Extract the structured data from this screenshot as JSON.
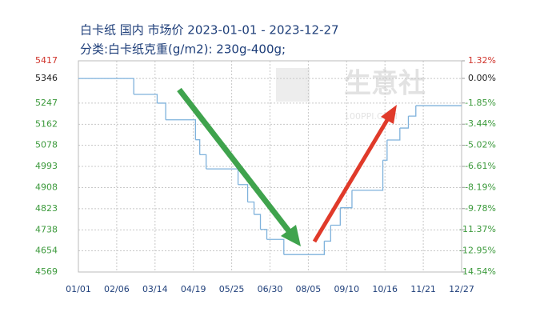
{
  "chart_data": {
    "type": "step",
    "title": "白卡纸 国内 市场价 2023-01-01 - 2023-12-27",
    "subtitle": "分类:白卡纸克重(g/m2): 230g-400g;",
    "watermark": "生意社",
    "watermark_url": "100PPI.COM",
    "x": [
      "01/01",
      "02/22",
      "03/16",
      "03/24",
      "04/21",
      "04/25",
      "05/01",
      "05/31",
      "06/09",
      "06/15",
      "06/21",
      "06/27",
      "07/13",
      "08/20",
      "08/26",
      "09/04",
      "09/15",
      "10/14",
      "10/18",
      "10/30",
      "11/07",
      "11/14",
      "12/27"
    ],
    "series": [
      {
        "name": "白卡纸",
        "color": "#7fb2dc",
        "values": [
          5346,
          5282,
          5247,
          5180,
          5100,
          5040,
          4983,
          4920,
          4850,
          4800,
          4740,
          4700,
          4639,
          4693,
          4757,
          4827,
          4897,
          5018,
          5099,
          5147,
          5195,
          5237,
          5237
        ]
      }
    ],
    "xlim": [
      "01/01",
      "12/27"
    ],
    "xticks": [
      "01/01",
      "02/06",
      "03/14",
      "04/19",
      "05/25",
      "06/30",
      "08/05",
      "09/10",
      "10/16",
      "11/21",
      "12/27"
    ],
    "ylim": [
      4569,
      5417
    ],
    "yticks": [
      5417,
      5346,
      5247,
      5162,
      5078,
      4993,
      4908,
      4823,
      4738,
      4654,
      4569
    ],
    "y2lim": [
      -14.54,
      1.32
    ],
    "y2ticks": [
      {
        "value": 1.32,
        "label": "1.32%"
      },
      {
        "value": 0,
        "label": "0.00%"
      },
      {
        "value": -1.85,
        "label": "-1.85%"
      },
      {
        "value": -3.44,
        "label": "-3.44%"
      },
      {
        "value": -5.02,
        "label": "-5.02%"
      },
      {
        "value": -6.61,
        "label": "-6.61%"
      },
      {
        "value": -8.19,
        "label": "-8.19%"
      },
      {
        "value": -9.78,
        "label": "-9.78%"
      },
      {
        "value": -11.37,
        "label": "-11.37%"
      },
      {
        "value": -12.95,
        "label": "-12.95%"
      },
      {
        "value": -14.54,
        "label": "-14.54%"
      }
    ],
    "grid": true,
    "up_color": "#d0342c",
    "flat_color": "#222222",
    "down_color": "#3c9a3c"
  }
}
